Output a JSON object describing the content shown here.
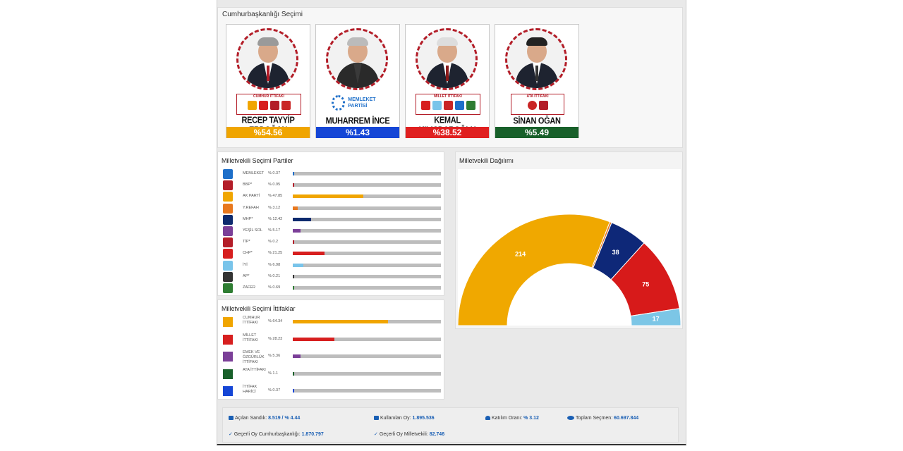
{
  "presidential": {
    "title": "Cumhurbaşkanlığı Seçimi",
    "candidates": [
      {
        "name": "RECEP TAYYİP ERDOĞAN",
        "percent": "%54.56",
        "color": "#f0a500",
        "alliance": "CUMHUR İTTİFAKI"
      },
      {
        "name": "MUHARREM İNCE",
        "percent": "%1.43",
        "color": "#1546d6",
        "party_logo_text": "MEMLEKET PARTİSİ"
      },
      {
        "name": "KEMAL KILIÇDAROĞLU",
        "percent": "%38.52",
        "color": "#e02020",
        "alliance": "MİLLET İTTİFAKI"
      },
      {
        "name": "SİNAN OĞAN",
        "percent": "%5.49",
        "color": "#18602a",
        "alliance": "ATA İTTİFAKI"
      }
    ]
  },
  "parties": {
    "title": "Milletvekili Seçimi Partiler",
    "items": [
      {
        "name": "MEMLEKET",
        "value": "% 0.37",
        "pct": 0.37,
        "color": "#1e6fc9",
        "icon": "memleket-party-icon"
      },
      {
        "name": "BBP*",
        "value": "% 0.95",
        "pct": 0.95,
        "color": "#b31d28",
        "icon": "bbp-party-icon"
      },
      {
        "name": "AK PARTİ",
        "value": "% 47.85",
        "pct": 47.85,
        "color": "#f0a500",
        "icon": "ak-parti-icon"
      },
      {
        "name": "Y.REFAH",
        "value": "% 3.12",
        "pct": 3.12,
        "color": "#e8781e",
        "icon": "yeniden-refah-icon"
      },
      {
        "name": "MHP*",
        "value": "% 12.42",
        "pct": 12.42,
        "color": "#0d2a6e",
        "icon": "mhp-party-icon"
      },
      {
        "name": "YEŞİL SOL",
        "value": "% 5.17",
        "pct": 5.17,
        "color": "#7b3f98",
        "icon": "yesil-sol-icon"
      },
      {
        "name": "TİP*",
        "value": "% 0.2",
        "pct": 0.2,
        "color": "#b31d28",
        "icon": "tip-party-icon"
      },
      {
        "name": "CHP*",
        "value": "% 21.25",
        "pct": 21.25,
        "color": "#d71f1f",
        "icon": "chp-party-icon"
      },
      {
        "name": "İYİ",
        "value": "% 6.98",
        "pct": 6.98,
        "color": "#79c4ea",
        "icon": "iyi-party-icon"
      },
      {
        "name": "AP*",
        "value": "% 0.21",
        "pct": 0.21,
        "color": "#333333",
        "icon": "ap-party-icon"
      },
      {
        "name": "ZAFER",
        "value": "% 0.69",
        "pct": 0.69,
        "color": "#2e7d32",
        "icon": "zafer-party-icon"
      }
    ]
  },
  "alliances": {
    "title": "Milletvekili Seçimi İttifaklar",
    "items": [
      {
        "name": "CUMHUR İTTİFAKI",
        "value": "% 64.34",
        "pct": 64.34,
        "color": "#f0a500"
      },
      {
        "name": "MİLLET İTTİFAKI",
        "value": "% 28.23",
        "pct": 28.23,
        "color": "#d71f1f"
      },
      {
        "name": "EMEK VE ÖZGÜRLÜK İTTİFAKI",
        "value": "% 5.36",
        "pct": 5.36,
        "color": "#7b3f98"
      },
      {
        "name": "ATA İTTİFAKI",
        "value": "% 1.1",
        "pct": 1.1,
        "color": "#18602a"
      },
      {
        "name": "İTTİFAK HARİCİ",
        "value": "% 0.37",
        "pct": 0.37,
        "color": "#1546d6"
      }
    ]
  },
  "seats": {
    "title": "Milletvekili Dağılımı",
    "chart_data": {
      "type": "pie",
      "subtype": "half-donut",
      "slices": [
        {
          "label": "214",
          "value": 214,
          "color": "#f0a800"
        },
        {
          "label": "",
          "value": 2,
          "color": "#e8781e"
        },
        {
          "label": "38",
          "value": 38,
          "color": "#0e2878"
        },
        {
          "label": "75",
          "value": 75,
          "color": "#d71a1a"
        },
        {
          "label": "17",
          "value": 17,
          "color": "#7cc6e6"
        }
      ]
    }
  },
  "footer": {
    "acilan_sandik_label": "Açılan Sandık:",
    "acilan_sandik_value": "8.519 / % 4.44",
    "kullanilan_oy_label": "Kullanılan Oy:",
    "kullanilan_oy_value": "1.895.536",
    "katilim_label": "Katılım Oranı:",
    "katilim_value": "% 3.12",
    "toplam_secmen_label": "Toplam Seçmen:",
    "toplam_secmen_value": "60.697.844",
    "gecerli_cb_label": "Geçerli Oy Cumhurbaşkanlığı:",
    "gecerli_cb_value": "1.870.797",
    "gecerli_mv_label": "Geçerli Oy Milletvekili:",
    "gecerli_mv_value": "82.746"
  }
}
